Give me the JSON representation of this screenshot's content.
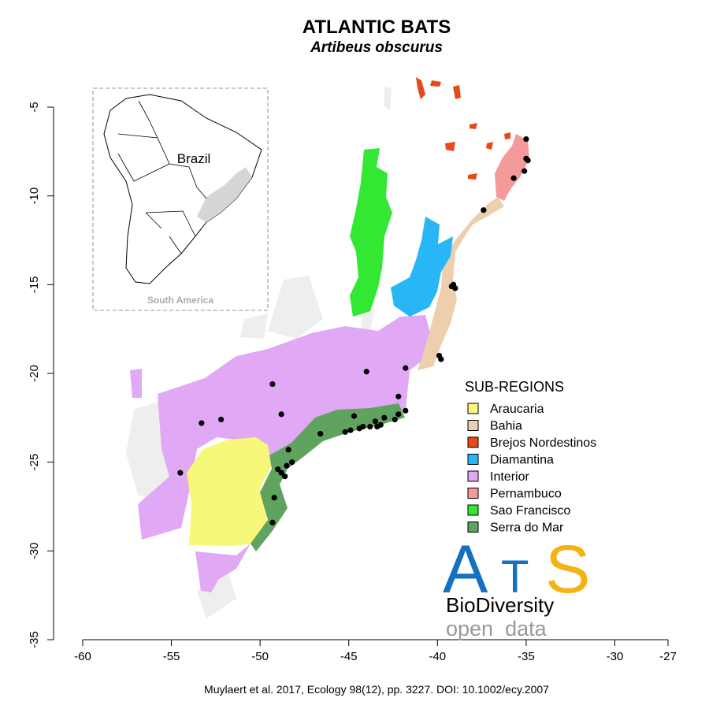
{
  "title": "ATLANTIC BATS",
  "subtitle": "Artibeus obscurus",
  "inset": {
    "country_label": "Brazil",
    "caption": "South America"
  },
  "legend": {
    "title": "SUB-REGIONS",
    "items": [
      {
        "label": "Araucaria",
        "color": "#f7f779"
      },
      {
        "label": "Bahia",
        "color": "#edcfad"
      },
      {
        "label": "Brejos Nordestinos",
        "color": "#e64a19"
      },
      {
        "label": "Diamantina",
        "color": "#29b6f6"
      },
      {
        "label": "Interior",
        "color": "#e0a8f5"
      },
      {
        "label": "Pernambuco",
        "color": "#f49a9a"
      },
      {
        "label": "Sao Francisco",
        "color": "#33e833"
      },
      {
        "label": "Serra do Mar",
        "color": "#5fa35f"
      }
    ]
  },
  "axes": {
    "x_ticks": [
      "-60",
      "-55",
      "-50",
      "-45",
      "-40",
      "-35",
      "-30",
      "-27"
    ],
    "y_ticks": [
      "-5",
      "-10",
      "-15",
      "-20",
      "-25",
      "-30",
      "-35"
    ],
    "x_range": [
      -60,
      -27
    ],
    "y_range": [
      -35,
      -5
    ]
  },
  "logo": {
    "letters_a": "A",
    "letters_t": "T",
    "letters_s": "S",
    "line1": "BioDiversity",
    "line2": "open  data",
    "color_blue": "#1470c0",
    "color_gold": "#f3b413"
  },
  "citation": "Muylaert et al. 2017, Ecology 98(12), pp. 3227. DOI: 10.1002/ecy.2007",
  "occurrences": [
    [
      -35.0,
      -6.8
    ],
    [
      -35.0,
      -7.9
    ],
    [
      -34.9,
      -8.0
    ],
    [
      -35.1,
      -8.6
    ],
    [
      -35.7,
      -9.0
    ],
    [
      -37.4,
      -10.8
    ],
    [
      -39.1,
      -15.0
    ],
    [
      -39.0,
      -15.2
    ],
    [
      -39.2,
      -15.1
    ],
    [
      -39.9,
      -19.0
    ],
    [
      -39.8,
      -19.2
    ],
    [
      -41.8,
      -19.7
    ],
    [
      -44.0,
      -19.9
    ],
    [
      -49.3,
      -20.6
    ],
    [
      -41.8,
      -22.1
    ],
    [
      -42.2,
      -21.3
    ],
    [
      -42.2,
      -22.3
    ],
    [
      -42.4,
      -22.6
    ],
    [
      -43.0,
      -22.5
    ],
    [
      -43.2,
      -22.9
    ],
    [
      -43.4,
      -23.0
    ],
    [
      -43.5,
      -22.7
    ],
    [
      -43.8,
      -23.0
    ],
    [
      -44.2,
      -23.0
    ],
    [
      -44.4,
      -23.1
    ],
    [
      -44.7,
      -22.4
    ],
    [
      -44.9,
      -23.2
    ],
    [
      -45.2,
      -23.3
    ],
    [
      -46.6,
      -23.4
    ],
    [
      -48.4,
      -24.3
    ],
    [
      -48.2,
      -25.0
    ],
    [
      -48.5,
      -25.2
    ],
    [
      -48.8,
      -25.6
    ],
    [
      -48.6,
      -25.8
    ],
    [
      -49.0,
      -25.4
    ],
    [
      -49.2,
      -27.0
    ],
    [
      -49.3,
      -28.4
    ],
    [
      -48.8,
      -22.3
    ],
    [
      -52.2,
      -22.6
    ],
    [
      -53.3,
      -22.8
    ],
    [
      -54.5,
      -25.6
    ]
  ]
}
